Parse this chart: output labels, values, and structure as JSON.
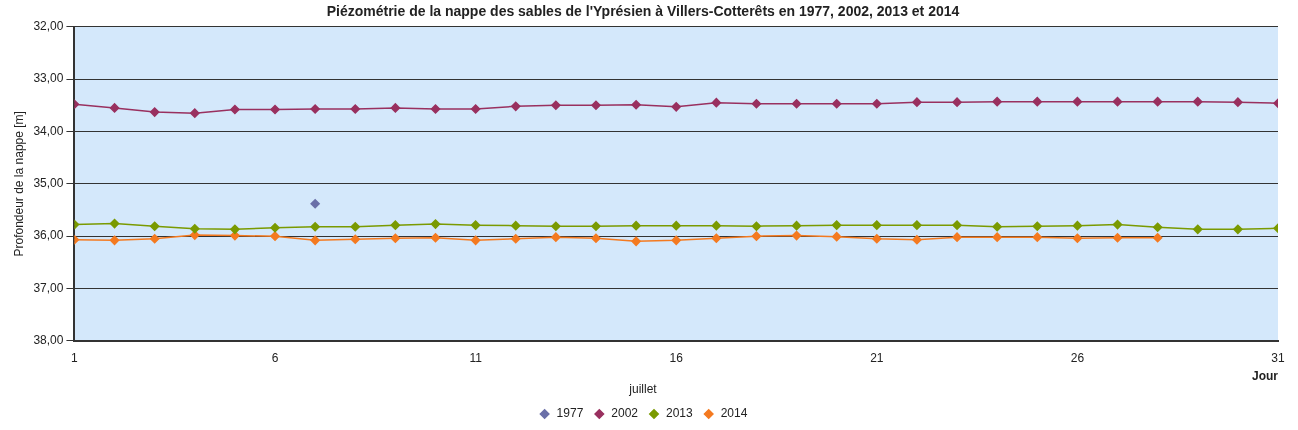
{
  "chart_data": {
    "type": "line",
    "title": "Piézométrie de la nappe des sables de l'Yprésien à Villers-Cotterêts en 1977, 2002, 2013 et 2014",
    "xlabel": "Jour",
    "ylabel": "Profondeur de la nappe [m]",
    "legend_title": "juillet",
    "x": [
      1,
      2,
      3,
      4,
      5,
      6,
      7,
      8,
      9,
      10,
      11,
      12,
      13,
      14,
      15,
      16,
      17,
      18,
      19,
      20,
      21,
      22,
      23,
      24,
      25,
      26,
      27,
      28,
      29,
      30,
      31
    ],
    "series": [
      {
        "name": "1977",
        "color": "#6a6fa8",
        "type": "scatter",
        "x": [
          7
        ],
        "values": [
          35.38
        ]
      },
      {
        "name": "2002",
        "color": "#99305f",
        "values": [
          33.48,
          33.55,
          33.63,
          33.65,
          33.58,
          33.58,
          33.57,
          33.57,
          33.55,
          33.57,
          33.57,
          33.52,
          33.5,
          33.5,
          33.49,
          33.53,
          33.45,
          33.47,
          33.47,
          33.47,
          33.47,
          33.44,
          33.44,
          33.43,
          33.43,
          33.43,
          33.43,
          33.43,
          33.43,
          33.44,
          33.46
        ]
      },
      {
        "name": "2013",
        "color": "#7a9a01",
        "values": [
          35.78,
          35.76,
          35.81,
          35.86,
          35.87,
          35.84,
          35.82,
          35.82,
          35.79,
          35.77,
          35.79,
          35.8,
          35.81,
          35.81,
          35.8,
          35.8,
          35.8,
          35.81,
          35.8,
          35.79,
          35.79,
          35.79,
          35.79,
          35.82,
          35.81,
          35.8,
          35.78,
          35.83,
          35.87,
          35.87,
          35.85
        ]
      },
      {
        "name": "2014",
        "color": "#f47a20",
        "values": [
          36.07,
          36.08,
          36.05,
          35.98,
          35.99,
          36.0,
          36.08,
          36.06,
          36.04,
          36.03,
          36.08,
          36.05,
          36.02,
          36.04,
          36.1,
          36.08,
          36.04,
          36.0,
          35.99,
          36.01,
          36.05,
          36.07,
          36.02,
          36.02,
          36.02,
          36.04,
          36.03,
          36.03,
          null,
          null,
          null
        ]
      }
    ],
    "xlim": [
      1,
      31
    ],
    "xticks": [
      1,
      6,
      11,
      16,
      21,
      26,
      31
    ],
    "ylim": [
      38,
      32
    ],
    "yticks": [
      {
        "value": 32,
        "label": "32,00"
      },
      {
        "value": 33,
        "label": "33,00"
      },
      {
        "value": 34,
        "label": "34,00"
      },
      {
        "value": 35,
        "label": "35,00"
      },
      {
        "value": 36,
        "label": "36,00"
      },
      {
        "value": 37,
        "label": "37,00"
      },
      {
        "value": 38,
        "label": "38,00"
      }
    ],
    "grid": "y",
    "legend": "bottom",
    "marker": "diamond",
    "line_style": "solid"
  }
}
